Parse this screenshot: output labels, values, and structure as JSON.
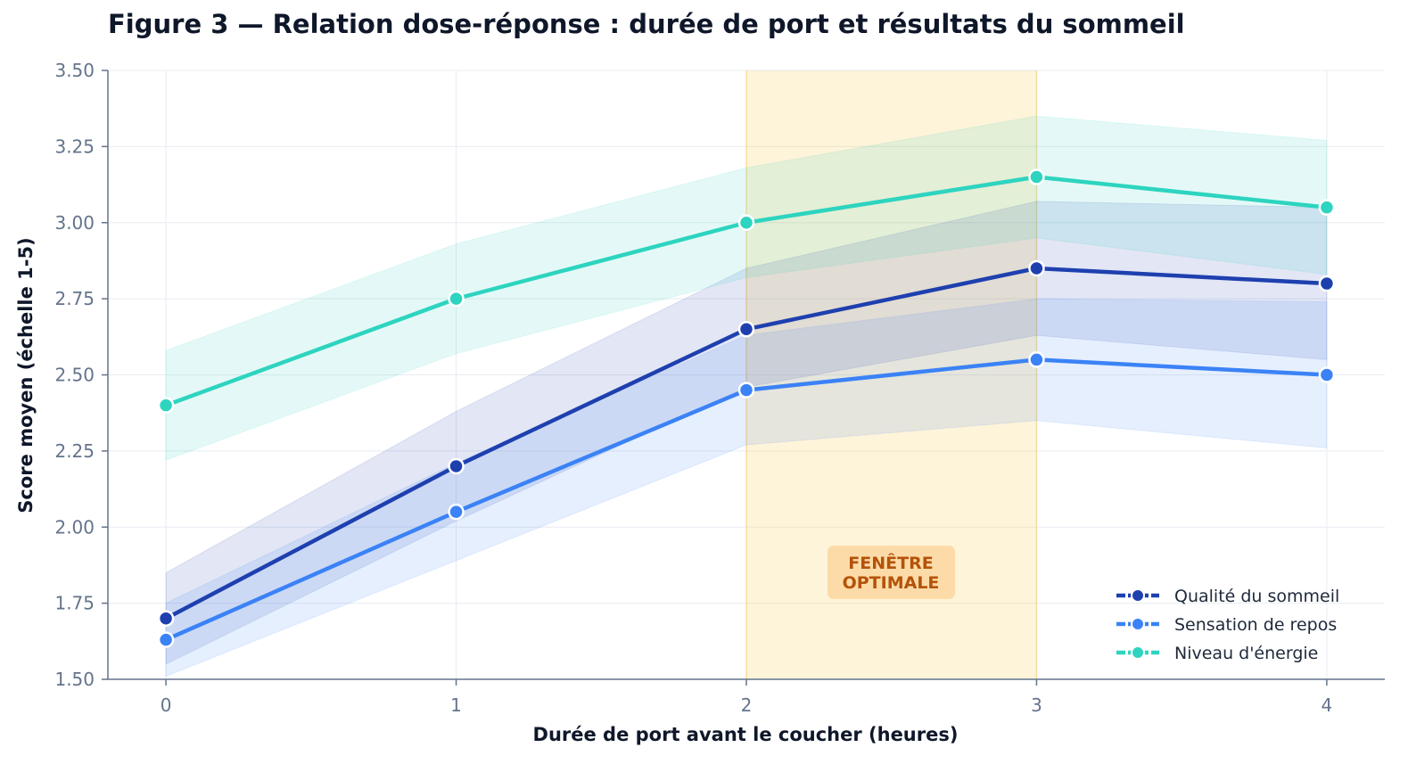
{
  "chart_data": {
    "type": "line",
    "title": "Figure 3 — Relation dose-réponse : durée de port et résultats du sommeil",
    "xlabel": "Durée de port avant le coucher (heures)",
    "ylabel": "Score moyen (échelle 1-5)",
    "x": [
      0,
      1,
      2,
      3,
      4
    ],
    "xticks": [
      "0",
      "1",
      "2",
      "3",
      "4"
    ],
    "xlim": [
      -0.2,
      4.2
    ],
    "ylim": [
      1.5,
      3.5
    ],
    "yticks": [
      "1.50",
      "1.75",
      "2.00",
      "2.25",
      "2.50",
      "2.75",
      "3.00",
      "3.25",
      "3.50"
    ],
    "grid": true,
    "legend_position": "bottom-right",
    "highlight_region": {
      "x_start": 2,
      "x_end": 3,
      "label_line1": "FENÊTRE",
      "label_line2": "OPTIMALE",
      "color": "#fbbf24"
    },
    "series": [
      {
        "name": "Qualité du sommeil",
        "color": "#1e40af",
        "values": [
          1.7,
          2.2,
          2.65,
          2.85,
          2.8
        ],
        "lower": [
          1.55,
          2.02,
          2.46,
          2.63,
          2.55
        ],
        "upper": [
          1.85,
          2.38,
          2.85,
          3.07,
          3.05
        ]
      },
      {
        "name": "Sensation de repos",
        "color": "#3b82f6",
        "values": [
          1.63,
          2.05,
          2.45,
          2.55,
          2.5
        ],
        "lower": [
          1.51,
          1.89,
          2.27,
          2.35,
          2.26
        ],
        "upper": [
          1.75,
          2.21,
          2.63,
          2.75,
          2.74
        ]
      },
      {
        "name": "Niveau d'énergie",
        "color": "#2dd4bf",
        "values": [
          2.4,
          2.75,
          3.0,
          3.15,
          3.05
        ],
        "lower": [
          2.22,
          2.57,
          2.82,
          2.95,
          2.83
        ],
        "upper": [
          2.58,
          2.93,
          3.18,
          3.35,
          3.27
        ]
      }
    ]
  }
}
